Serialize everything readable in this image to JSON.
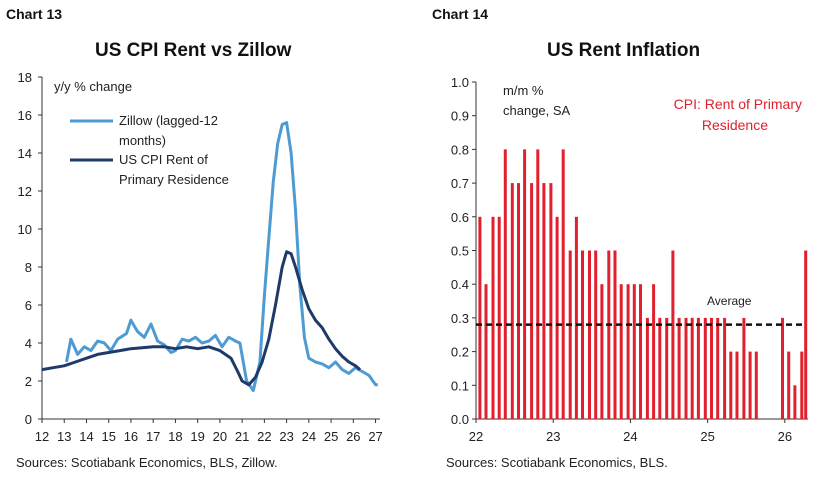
{
  "charts": [
    {
      "label": "Chart 13",
      "title": "US CPI Rent vs Zillow",
      "ylabel": "y/y % change",
      "source": "Sources: Scotiabank Economics, BLS, Zillow.",
      "legend": [
        "Zillow (lagged-12",
        "months)",
        "US CPI Rent of",
        "Primary Residence"
      ]
    },
    {
      "label": "Chart 14",
      "title": "US Rent Inflation",
      "ylabel_lines": [
        "m/m %",
        "change, SA"
      ],
      "series_label_lines": [
        "CPI: Rent of Primary",
        "Residence"
      ],
      "average_label": "Average",
      "source": "Sources: Scotiabank Economics, BLS."
    }
  ],
  "colors": {
    "zillow": "#4e9bd3",
    "cpi": "#1f3a68",
    "bars": "#e0202c",
    "average": "#111111",
    "axis": "#333333"
  },
  "chart_data": [
    {
      "type": "line",
      "title": "US CPI Rent vs Zillow",
      "ylabel": "y/y % change",
      "xlabel": "",
      "xlim": [
        12,
        27.2
      ],
      "ylim": [
        0,
        18
      ],
      "x_ticks": [
        "12",
        "13",
        "14",
        "15",
        "16",
        "17",
        "18",
        "19",
        "20",
        "21",
        "22",
        "23",
        "24",
        "25",
        "26",
        "27"
      ],
      "y_ticks": [
        "0",
        "2",
        "4",
        "6",
        "8",
        "10",
        "12",
        "14",
        "16",
        "18"
      ],
      "legend_position": "top-left",
      "series": [
        {
          "name": "Zillow (lagged-12 months)",
          "x": [
            13.1,
            13.3,
            13.6,
            13.9,
            14.2,
            14.5,
            14.8,
            15.1,
            15.4,
            15.8,
            16.0,
            16.3,
            16.6,
            16.9,
            17.2,
            17.5,
            17.8,
            18.0,
            18.3,
            18.6,
            18.9,
            19.2,
            19.5,
            19.8,
            20.1,
            20.4,
            20.7,
            20.9,
            21.2,
            21.5,
            21.8,
            22.0,
            22.2,
            22.4,
            22.6,
            22.8,
            23.0,
            23.2,
            23.4,
            23.6,
            23.8,
            24.0,
            24.3,
            24.6,
            24.9,
            25.2,
            25.5,
            25.8,
            26.1,
            26.4,
            26.7,
            27.0,
            27.1
          ],
          "values": [
            3.0,
            4.2,
            3.4,
            3.8,
            3.6,
            4.1,
            4.0,
            3.6,
            4.2,
            4.5,
            5.2,
            4.6,
            4.3,
            5.0,
            4.1,
            3.9,
            3.5,
            3.6,
            4.2,
            4.1,
            4.3,
            4.0,
            4.1,
            4.4,
            3.8,
            4.3,
            4.1,
            4.0,
            2.0,
            1.5,
            3.0,
            6.5,
            9.5,
            12.5,
            14.5,
            15.5,
            15.6,
            14.0,
            11.0,
            7.0,
            4.3,
            3.2,
            3.0,
            2.9,
            2.7,
            3.0,
            2.6,
            2.4,
            2.7,
            2.5,
            2.3,
            1.8,
            1.8
          ]
        },
        {
          "name": "US CPI Rent of Primary Residence",
          "x": [
            12.0,
            12.5,
            13.0,
            13.5,
            14.0,
            14.5,
            15.0,
            15.5,
            16.0,
            16.5,
            17.0,
            17.5,
            18.0,
            18.5,
            19.0,
            19.5,
            20.0,
            20.5,
            20.8,
            21.0,
            21.3,
            21.6,
            21.9,
            22.2,
            22.5,
            22.8,
            23.0,
            23.2,
            23.4,
            23.7,
            24.0,
            24.3,
            24.6,
            24.9,
            25.2,
            25.5,
            25.8,
            26.1,
            26.3
          ],
          "values": [
            2.6,
            2.7,
            2.8,
            3.0,
            3.2,
            3.4,
            3.5,
            3.6,
            3.7,
            3.75,
            3.8,
            3.8,
            3.7,
            3.8,
            3.7,
            3.8,
            3.6,
            3.2,
            2.5,
            2.0,
            1.8,
            2.2,
            3.0,
            4.2,
            6.0,
            8.0,
            8.8,
            8.7,
            8.0,
            6.8,
            5.8,
            5.2,
            4.8,
            4.2,
            3.7,
            3.3,
            3.0,
            2.8,
            2.6
          ]
        }
      ]
    },
    {
      "type": "bar",
      "title": "US Rent Inflation",
      "ylabel": "m/m % change, SA",
      "xlabel": "",
      "xlim": [
        22,
        26.3
      ],
      "ylim": [
        0,
        1.0
      ],
      "x_ticks": [
        "22",
        "23",
        "24",
        "25",
        "26"
      ],
      "y_ticks": [
        "0.0",
        "0.1",
        "0.2",
        "0.3",
        "0.4",
        "0.5",
        "0.6",
        "0.7",
        "0.8",
        "0.9",
        "1.0"
      ],
      "average": 0.28,
      "series": [
        {
          "name": "CPI: Rent of Primary Residence",
          "x": [
            22.05,
            22.13,
            22.22,
            22.3,
            22.38,
            22.47,
            22.55,
            22.63,
            22.72,
            22.8,
            22.88,
            22.97,
            23.05,
            23.13,
            23.22,
            23.3,
            23.38,
            23.47,
            23.55,
            23.63,
            23.72,
            23.8,
            23.88,
            23.97,
            24.05,
            24.13,
            24.22,
            24.3,
            24.38,
            24.47,
            24.55,
            24.63,
            24.72,
            24.8,
            24.88,
            24.97,
            25.05,
            25.13,
            25.22,
            25.3,
            25.38,
            25.47,
            25.55,
            25.63,
            25.97,
            26.05,
            26.13,
            26.22
          ],
          "values": [
            0.6,
            0.4,
            0.6,
            0.6,
            0.8,
            0.7,
            0.7,
            0.8,
            0.7,
            0.8,
            0.7,
            0.7,
            0.6,
            0.8,
            0.5,
            0.6,
            0.5,
            0.5,
            0.5,
            0.4,
            0.5,
            0.5,
            0.4,
            0.4,
            0.4,
            0.4,
            0.3,
            0.4,
            0.3,
            0.3,
            0.5,
            0.3,
            0.3,
            0.3,
            0.3,
            0.3,
            0.3,
            0.3,
            0.3,
            0.2,
            0.2,
            0.3,
            0.2,
            0.2,
            0.3,
            0.2,
            0.1,
            0.2
          ]
        },
        {
          "name": "",
          "x": [
            26.27
          ],
          "values": [
            0.5
          ]
        }
      ]
    }
  ]
}
